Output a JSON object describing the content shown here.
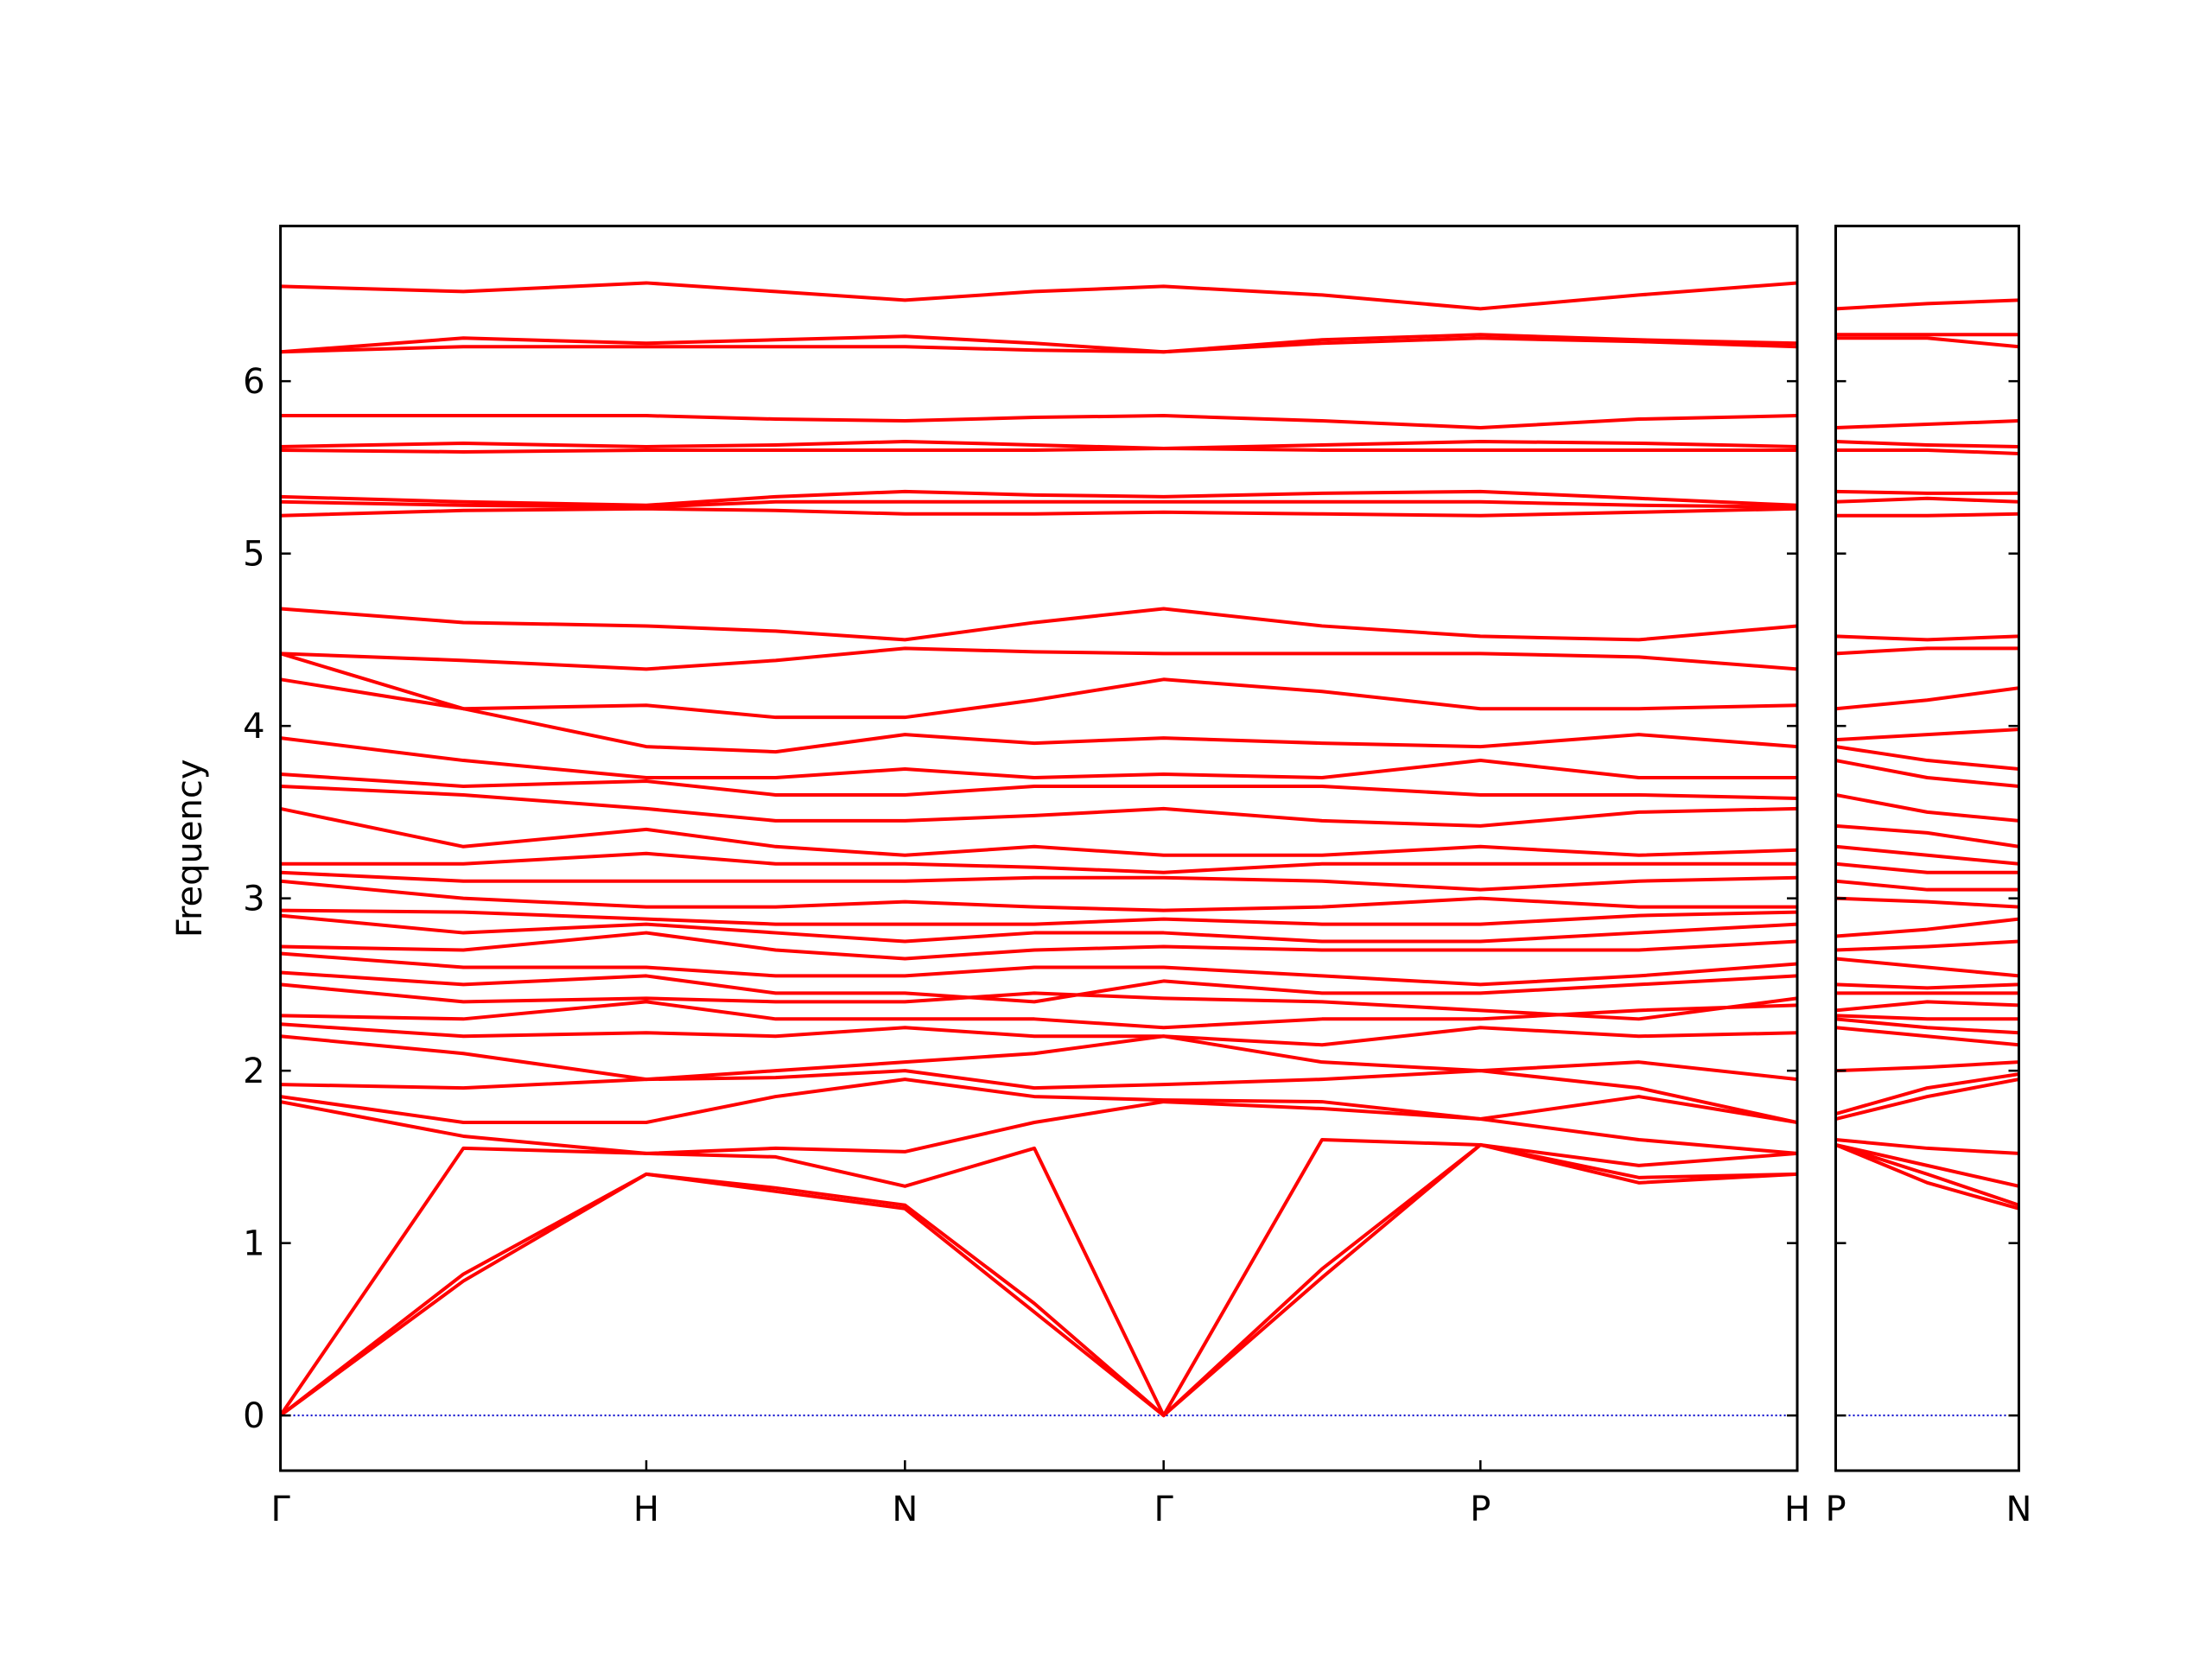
{
  "chart_data": [
    {
      "type": "line",
      "ylabel": "Frequency",
      "color": "#ff0000",
      "zero_line_color": "#0000cc",
      "x": [
        0,
        0.5,
        1,
        1.3536,
        1.7071,
        2.0607,
        2.4142,
        2.8472,
        3.2802,
        3.7133,
        4.1463
      ],
      "xlim": [
        0,
        4.1463
      ],
      "xticks": [
        {
          "value": 0,
          "label": "Γ"
        },
        {
          "value": 1,
          "label": "H"
        },
        {
          "value": 1.7071,
          "label": "N"
        },
        {
          "value": 2.4142,
          "label": "Γ"
        },
        {
          "value": 3.2802,
          "label": "P"
        },
        {
          "value": 4.1463,
          "label": "H"
        }
      ],
      "ylim": [
        -0.32,
        6.9
      ],
      "yticks": [
        0,
        1,
        2,
        3,
        4,
        5,
        6
      ],
      "series": [
        {
          "values": [
            0,
            0.78,
            1.4,
            1.3,
            1.2,
            0.6,
            0,
            0.8,
            1.57,
            1.38,
            1.4
          ]
        },
        {
          "values": [
            0,
            0.82,
            1.4,
            1.32,
            1.22,
            0.65,
            0,
            0.85,
            1.57,
            1.35,
            1.4
          ]
        },
        {
          "values": [
            0,
            1.55,
            1.52,
            1.5,
            1.33,
            1.55,
            0,
            1.6,
            1.57,
            1.45,
            1.52
          ]
        },
        {
          "values": [
            1.82,
            1.62,
            1.52,
            1.55,
            1.53,
            1.7,
            1.82,
            1.78,
            1.72,
            1.6,
            1.52
          ]
        },
        {
          "values": [
            1.85,
            1.7,
            1.7,
            1.85,
            1.95,
            1.85,
            1.83,
            1.82,
            1.72,
            1.85,
            1.7
          ]
        },
        {
          "values": [
            1.92,
            1.9,
            1.95,
            1.96,
            2.0,
            1.9,
            1.92,
            1.95,
            2.0,
            1.9,
            1.7
          ]
        },
        {
          "values": [
            2.2,
            2.1,
            1.95,
            2.0,
            2.05,
            2.1,
            2.2,
            2.05,
            2.0,
            2.05,
            1.95
          ]
        },
        {
          "values": [
            2.27,
            2.2,
            2.22,
            2.2,
            2.25,
            2.2,
            2.2,
            2.15,
            2.25,
            2.2,
            2.22
          ]
        },
        {
          "values": [
            2.32,
            2.3,
            2.4,
            2.3,
            2.3,
            2.3,
            2.25,
            2.3,
            2.3,
            2.35,
            2.38
          ]
        },
        {
          "values": [
            2.5,
            2.4,
            2.42,
            2.4,
            2.4,
            2.45,
            2.42,
            2.4,
            2.35,
            2.3,
            2.42
          ]
        },
        {
          "values": [
            2.57,
            2.5,
            2.55,
            2.45,
            2.45,
            2.4,
            2.52,
            2.45,
            2.45,
            2.5,
            2.55
          ]
        },
        {
          "values": [
            2.68,
            2.6,
            2.6,
            2.55,
            2.55,
            2.6,
            2.6,
            2.55,
            2.5,
            2.55,
            2.62
          ]
        },
        {
          "values": [
            2.72,
            2.7,
            2.8,
            2.7,
            2.65,
            2.7,
            2.72,
            2.7,
            2.7,
            2.7,
            2.75
          ]
        },
        {
          "values": [
            2.9,
            2.8,
            2.85,
            2.8,
            2.75,
            2.8,
            2.8,
            2.75,
            2.75,
            2.8,
            2.85
          ]
        },
        {
          "values": [
            2.93,
            2.92,
            2.88,
            2.85,
            2.85,
            2.85,
            2.88,
            2.85,
            2.85,
            2.9,
            2.92
          ]
        },
        {
          "values": [
            3.1,
            3.0,
            2.95,
            2.95,
            2.98,
            2.95,
            2.93,
            2.95,
            3.0,
            2.95,
            2.95
          ]
        },
        {
          "values": [
            3.15,
            3.1,
            3.1,
            3.1,
            3.1,
            3.12,
            3.12,
            3.1,
            3.05,
            3.1,
            3.12
          ]
        },
        {
          "values": [
            3.2,
            3.2,
            3.26,
            3.2,
            3.2,
            3.18,
            3.15,
            3.2,
            3.2,
            3.2,
            3.2
          ]
        },
        {
          "values": [
            3.52,
            3.3,
            3.4,
            3.3,
            3.25,
            3.3,
            3.25,
            3.25,
            3.3,
            3.25,
            3.28
          ]
        },
        {
          "values": [
            3.65,
            3.6,
            3.52,
            3.45,
            3.45,
            3.48,
            3.52,
            3.45,
            3.42,
            3.5,
            3.52
          ]
        },
        {
          "values": [
            3.72,
            3.65,
            3.68,
            3.6,
            3.6,
            3.65,
            3.65,
            3.65,
            3.6,
            3.6,
            3.58
          ]
        },
        {
          "values": [
            3.93,
            3.8,
            3.7,
            3.7,
            3.75,
            3.7,
            3.72,
            3.7,
            3.8,
            3.7,
            3.7
          ]
        },
        {
          "values": [
            4.27,
            4.1,
            3.88,
            3.85,
            3.95,
            3.9,
            3.93,
            3.9,
            3.88,
            3.95,
            3.88
          ]
        },
        {
          "values": [
            4.42,
            4.1,
            4.12,
            4.05,
            4.05,
            4.15,
            4.27,
            4.2,
            4.1,
            4.1,
            4.12
          ]
        },
        {
          "values": [
            4.42,
            4.38,
            4.33,
            4.38,
            4.45,
            4.43,
            4.42,
            4.42,
            4.42,
            4.4,
            4.33
          ]
        },
        {
          "values": [
            4.68,
            4.6,
            4.58,
            4.55,
            4.5,
            4.6,
            4.68,
            4.58,
            4.52,
            4.5,
            4.58
          ]
        },
        {
          "values": [
            5.22,
            5.25,
            5.26,
            5.25,
            5.23,
            5.23,
            5.24,
            5.23,
            5.22,
            5.24,
            5.26
          ]
        },
        {
          "values": [
            5.3,
            5.28,
            5.27,
            5.3,
            5.3,
            5.3,
            5.3,
            5.3,
            5.3,
            5.28,
            5.27
          ]
        },
        {
          "values": [
            5.33,
            5.3,
            5.28,
            5.33,
            5.36,
            5.34,
            5.33,
            5.35,
            5.36,
            5.32,
            5.28
          ]
        },
        {
          "values": [
            5.6,
            5.59,
            5.6,
            5.6,
            5.6,
            5.6,
            5.61,
            5.6,
            5.6,
            5.6,
            5.6
          ]
        },
        {
          "values": [
            5.62,
            5.64,
            5.62,
            5.63,
            5.65,
            5.63,
            5.61,
            5.63,
            5.65,
            5.64,
            5.62
          ]
        },
        {
          "values": [
            5.8,
            5.8,
            5.8,
            5.78,
            5.77,
            5.79,
            5.8,
            5.77,
            5.73,
            5.78,
            5.8
          ]
        },
        {
          "values": [
            6.17,
            6.2,
            6.2,
            6.2,
            6.2,
            6.18,
            6.17,
            6.22,
            6.25,
            6.23,
            6.2
          ]
        },
        {
          "values": [
            6.17,
            6.25,
            6.22,
            6.24,
            6.26,
            6.22,
            6.17,
            6.24,
            6.27,
            6.24,
            6.22
          ]
        },
        {
          "values": [
            6.55,
            6.52,
            6.57,
            6.52,
            6.47,
            6.52,
            6.55,
            6.5,
            6.42,
            6.5,
            6.57
          ]
        }
      ]
    },
    {
      "type": "line",
      "color": "#ff0000",
      "zero_line_color": "#0000cc",
      "x": [
        4.1463,
        4.3963,
        4.6463
      ],
      "xlim": [
        4.1463,
        4.6463
      ],
      "xticks": [
        {
          "value": 4.1463,
          "label": "P"
        },
        {
          "value": 4.6463,
          "label": "N"
        }
      ],
      "ylim": [
        -0.32,
        6.9
      ],
      "yticks": [
        0,
        1,
        2,
        3,
        4,
        5,
        6
      ],
      "series": [
        {
          "values": [
            1.57,
            1.35,
            1.2
          ]
        },
        {
          "values": [
            1.57,
            1.4,
            1.22
          ]
        },
        {
          "values": [
            1.57,
            1.45,
            1.33
          ]
        },
        {
          "values": [
            1.6,
            1.55,
            1.52
          ]
        },
        {
          "values": [
            1.72,
            1.85,
            1.95
          ]
        },
        {
          "values": [
            1.75,
            1.9,
            1.98
          ]
        },
        {
          "values": [
            2.0,
            2.02,
            2.05
          ]
        },
        {
          "values": [
            2.25,
            2.2,
            2.15
          ]
        },
        {
          "values": [
            2.3,
            2.25,
            2.22
          ]
        },
        {
          "values": [
            2.32,
            2.3,
            2.3
          ]
        },
        {
          "values": [
            2.35,
            2.4,
            2.38
          ]
        },
        {
          "values": [
            2.45,
            2.45,
            2.45
          ]
        },
        {
          "values": [
            2.5,
            2.48,
            2.5
          ]
        },
        {
          "values": [
            2.65,
            2.6,
            2.55
          ]
        },
        {
          "values": [
            2.7,
            2.72,
            2.75
          ]
        },
        {
          "values": [
            2.78,
            2.82,
            2.88
          ]
        },
        {
          "values": [
            3.0,
            2.98,
            2.95
          ]
        },
        {
          "values": [
            3.1,
            3.05,
            3.05
          ]
        },
        {
          "values": [
            3.2,
            3.15,
            3.15
          ]
        },
        {
          "values": [
            3.3,
            3.25,
            3.2
          ]
        },
        {
          "values": [
            3.42,
            3.38,
            3.3
          ]
        },
        {
          "values": [
            3.6,
            3.5,
            3.45
          ]
        },
        {
          "values": [
            3.8,
            3.7,
            3.65
          ]
        },
        {
          "values": [
            3.88,
            3.8,
            3.75
          ]
        },
        {
          "values": [
            3.92,
            3.95,
            3.98
          ]
        },
        {
          "values": [
            4.1,
            4.15,
            4.22
          ]
        },
        {
          "values": [
            4.42,
            4.45,
            4.45
          ]
        },
        {
          "values": [
            4.52,
            4.5,
            4.52
          ]
        },
        {
          "values": [
            5.22,
            5.22,
            5.23
          ]
        },
        {
          "values": [
            5.3,
            5.32,
            5.3
          ]
        },
        {
          "values": [
            5.36,
            5.35,
            5.35
          ]
        },
        {
          "values": [
            5.6,
            5.6,
            5.58
          ]
        },
        {
          "values": [
            5.65,
            5.63,
            5.62
          ]
        },
        {
          "values": [
            5.73,
            5.75,
            5.77
          ]
        },
        {
          "values": [
            6.25,
            6.25,
            6.2
          ]
        },
        {
          "values": [
            6.27,
            6.27,
            6.27
          ]
        },
        {
          "values": [
            6.42,
            6.45,
            6.47
          ]
        }
      ]
    }
  ]
}
